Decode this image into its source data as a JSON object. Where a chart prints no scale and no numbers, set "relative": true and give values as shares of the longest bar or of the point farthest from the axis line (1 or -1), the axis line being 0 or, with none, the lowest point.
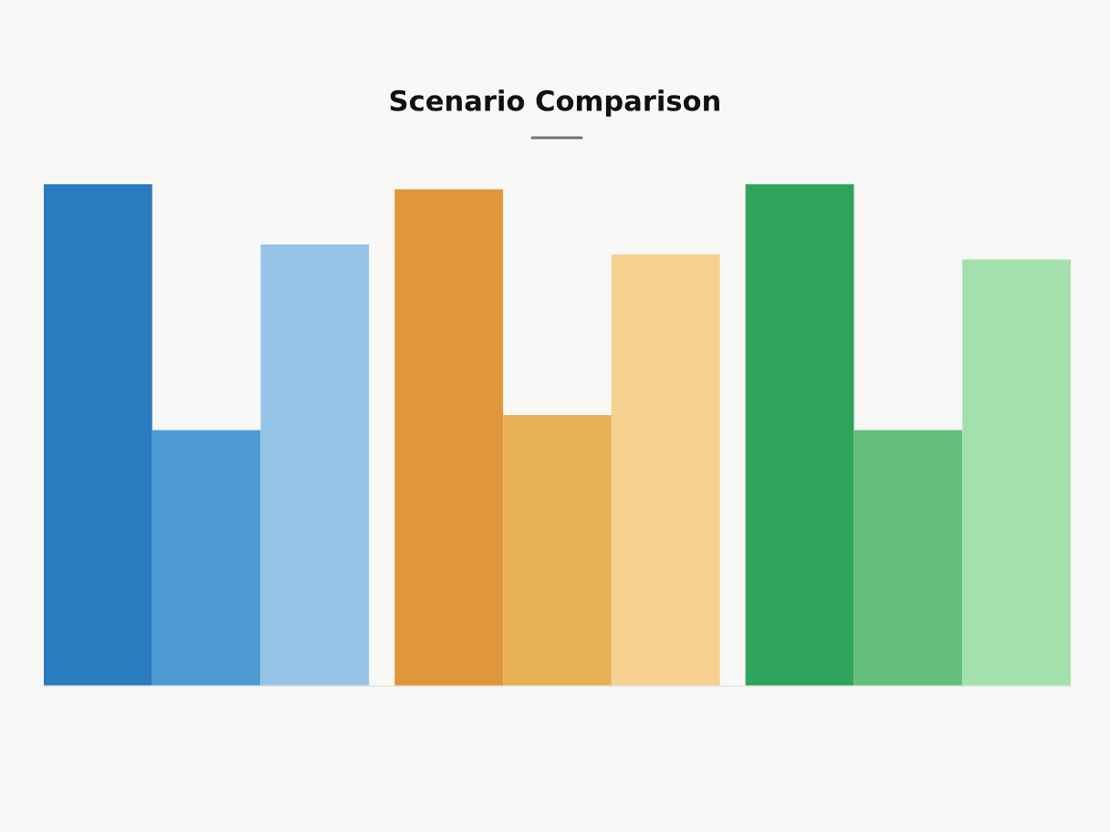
{
  "chart_data": {
    "type": "bar",
    "title": "Scenario Comparison",
    "relative": true,
    "categories": [
      null,
      null,
      null
    ],
    "series": [
      {
        "colors": [
          "#2b7bbf",
          "#e0963a",
          "#2ea55a"
        ],
        "values": [
          1.0,
          0.99,
          1.0
        ]
      },
      {
        "colors": [
          "#4e9ad4",
          "#e8b055",
          "#63be7b"
        ],
        "values": [
          0.51,
          0.54,
          0.51
        ]
      },
      {
        "colors": [
          "#95c4e8",
          "#f5d08e",
          "#a2e0ac"
        ],
        "values": [
          0.88,
          0.86,
          0.85
        ]
      }
    ]
  }
}
